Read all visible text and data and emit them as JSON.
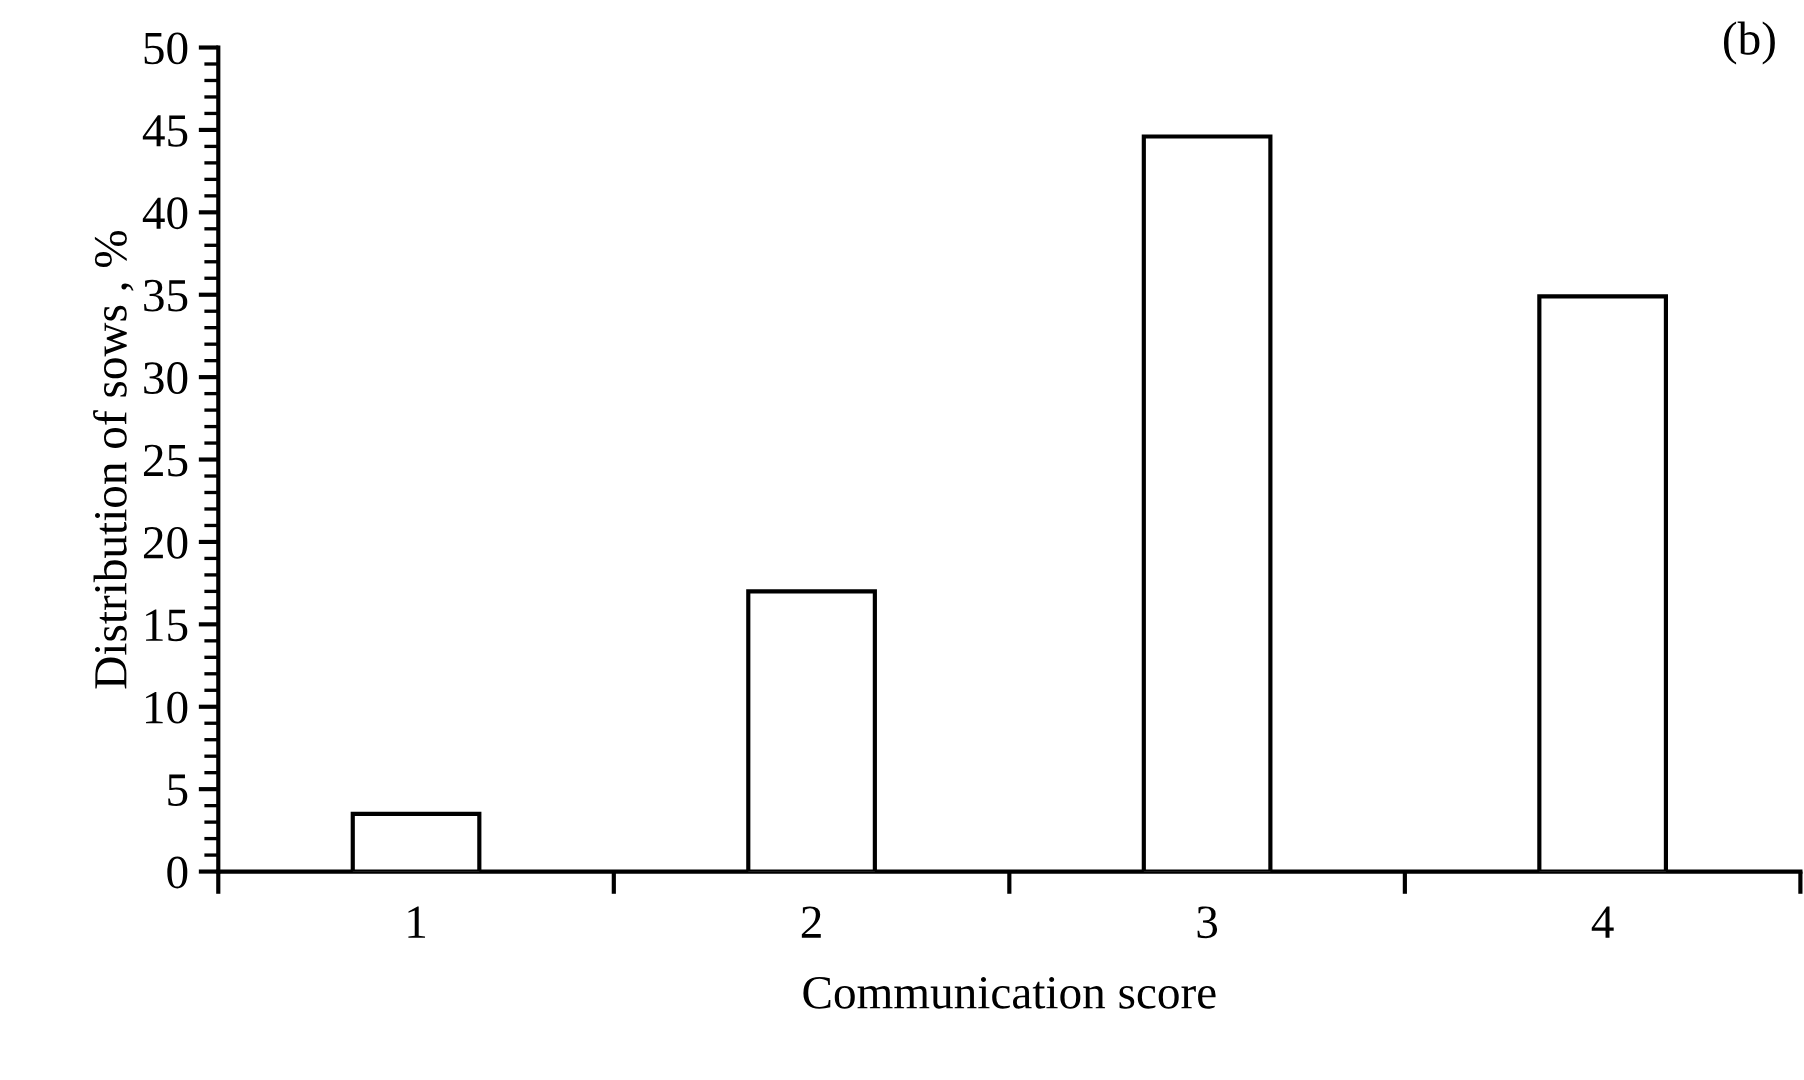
{
  "chart_data": {
    "type": "bar",
    "xlabel": "Communication score",
    "ylabel": "Distribution of sows , %",
    "categories": [
      "1",
      "2",
      "3",
      "4"
    ],
    "values": [
      3.5,
      17.0,
      44.6,
      34.9
    ],
    "color": "#ffffff",
    "ylim": [
      0,
      50
    ],
    "yticks": [
      0,
      5,
      10,
      15,
      20,
      25,
      30,
      35,
      40,
      45,
      50
    ],
    "grid": false,
    "legend": false,
    "annotations": [
      "(b)"
    ]
  }
}
